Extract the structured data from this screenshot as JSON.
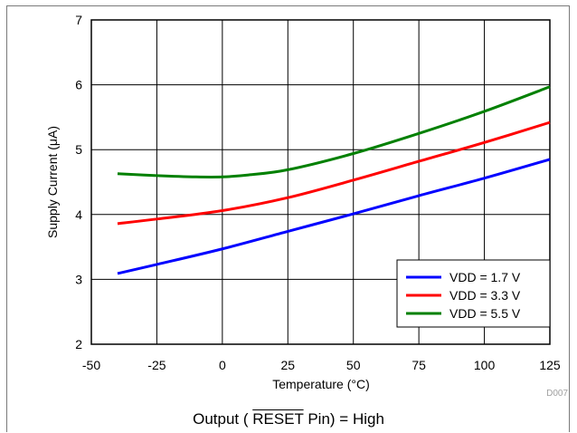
{
  "chart_data": {
    "type": "line",
    "xlabel": "Temperature (°C)",
    "ylabel": "Supply Current (μA)",
    "xlim": [
      -50,
      125
    ],
    "ylim": [
      2,
      7
    ],
    "xticks": [
      -50,
      -25,
      0,
      25,
      50,
      75,
      100,
      125
    ],
    "yticks": [
      2,
      3,
      4,
      5,
      6,
      7
    ],
    "grid": true,
    "legend_position": "bottom-right",
    "series": [
      {
        "name": "VDD = 1.7 V",
        "color": "#0000ff",
        "x": [
          -40,
          -25,
          0,
          25,
          50,
          75,
          100,
          125
        ],
        "y": [
          3.09,
          3.23,
          3.47,
          3.74,
          4.01,
          4.29,
          4.56,
          4.85
        ]
      },
      {
        "name": "VDD = 3.3 V",
        "color": "#ff0000",
        "x": [
          -40,
          -25,
          0,
          25,
          50,
          75,
          100,
          125
        ],
        "y": [
          3.86,
          3.93,
          4.06,
          4.26,
          4.53,
          4.82,
          5.11,
          5.42
        ]
      },
      {
        "name": "VDD = 5.5 V",
        "color": "#008000",
        "x": [
          -40,
          -25,
          -10,
          0,
          10,
          25,
          50,
          75,
          100,
          125
        ],
        "y": [
          4.63,
          4.6,
          4.58,
          4.58,
          4.61,
          4.69,
          4.94,
          5.25,
          5.59,
          5.97
        ]
      }
    ]
  },
  "code_label": "D007",
  "caption": {
    "prefix": "Output ( ",
    "pin": "RESET",
    "suffix": " Pin) = High"
  }
}
